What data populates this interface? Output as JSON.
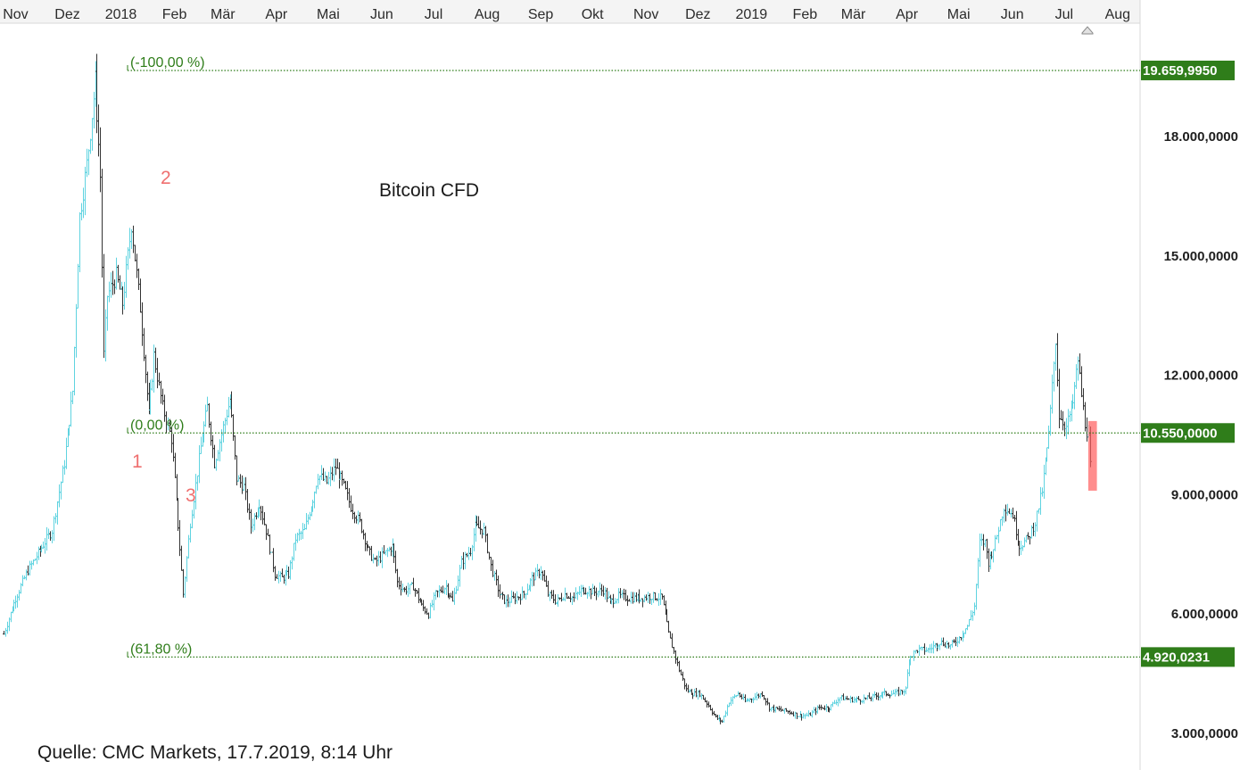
{
  "chart_data": {
    "type": "ohlc",
    "title": "Bitcoin CFD",
    "source": "Quelle: CMC Markets, 17.7.2019, 8:14 Uhr",
    "x_axis_labels": [
      "Nov",
      "Dez",
      "2018",
      "Feb",
      "Mär",
      "Apr",
      "Mai",
      "Jun",
      "Jul",
      "Aug",
      "Sep",
      "Okt",
      "Nov",
      "Dez",
      "2019",
      "Feb",
      "Mär",
      "Apr",
      "Mai",
      "Jun",
      "Jul",
      "Aug"
    ],
    "y_axis_labels": [
      {
        "value": 18000,
        "label": "18.000,0000"
      },
      {
        "value": 15000,
        "label": "15.000,0000"
      },
      {
        "value": 12000,
        "label": "12.000,0000"
      },
      {
        "value": 9000,
        "label": "9.000,0000"
      },
      {
        "value": 6000,
        "label": "6.000,0000"
      },
      {
        "value": 3000,
        "label": "3.000,0000"
      }
    ],
    "fib_levels": [
      {
        "label": "(-100,00 %)",
        "value": 19659.995,
        "tag": "19.659,9950"
      },
      {
        "label": "(0,00 %)",
        "value": 10550,
        "tag": "10.550,0000"
      },
      {
        "label": "(61,80 %)",
        "value": 4920.0231,
        "tag": "4.920,0231"
      }
    ],
    "wave_labels": [
      "1",
      "2",
      "3"
    ],
    "anchors": [
      [
        "2017-10-25",
        5500
      ],
      [
        "2017-11-01",
        6400
      ],
      [
        "2017-11-08",
        7100
      ],
      [
        "2017-11-15",
        7600
      ],
      [
        "2017-11-22",
        8100
      ],
      [
        "2017-11-29",
        9800
      ],
      [
        "2017-12-04",
        11600
      ],
      [
        "2017-12-08",
        16000
      ],
      [
        "2017-12-12",
        17300
      ],
      [
        "2017-12-17",
        19400
      ],
      [
        "2017-12-20",
        17000
      ],
      [
        "2017-12-22",
        12500
      ],
      [
        "2017-12-24",
        14000
      ],
      [
        "2017-12-29",
        14500
      ],
      [
        "2018-01-02",
        13800
      ],
      [
        "2018-01-07",
        15800
      ],
      [
        "2018-01-12",
        13700
      ],
      [
        "2018-01-17",
        11000
      ],
      [
        "2018-01-20",
        12500
      ],
      [
        "2018-01-25",
        11200
      ],
      [
        "2018-01-30",
        10400
      ],
      [
        "2018-02-02",
        8800
      ],
      [
        "2018-02-06",
        6500
      ],
      [
        "2018-02-10",
        8300
      ],
      [
        "2018-02-16",
        10200
      ],
      [
        "2018-02-20",
        11200
      ],
      [
        "2018-02-24",
        9800
      ],
      [
        "2018-03-01",
        10700
      ],
      [
        "2018-03-05",
        11400
      ],
      [
        "2018-03-09",
        9400
      ],
      [
        "2018-03-13",
        9200
      ],
      [
        "2018-03-17",
        8200
      ],
      [
        "2018-03-22",
        8800
      ],
      [
        "2018-03-26",
        8100
      ],
      [
        "2018-03-31",
        7000
      ],
      [
        "2018-04-04",
        6900
      ],
      [
        "2018-04-08",
        7000
      ],
      [
        "2018-04-12",
        7900
      ],
      [
        "2018-04-17",
        8100
      ],
      [
        "2018-04-22",
        8900
      ],
      [
        "2018-04-25",
        9500
      ],
      [
        "2018-04-30",
        9300
      ],
      [
        "2018-05-05",
        9700
      ],
      [
        "2018-05-10",
        9200
      ],
      [
        "2018-05-14",
        8700
      ],
      [
        "2018-05-19",
        8300
      ],
      [
        "2018-05-24",
        7600
      ],
      [
        "2018-05-28",
        7300
      ],
      [
        "2018-06-02",
        7500
      ],
      [
        "2018-06-07",
        7700
      ],
      [
        "2018-06-10",
        6800
      ],
      [
        "2018-06-14",
        6600
      ],
      [
        "2018-06-19",
        6700
      ],
      [
        "2018-06-24",
        6200
      ],
      [
        "2018-06-28",
        6000
      ],
      [
        "2018-07-02",
        6500
      ],
      [
        "2018-07-08",
        6700
      ],
      [
        "2018-07-12",
        6300
      ],
      [
        "2018-07-17",
        7300
      ],
      [
        "2018-07-22",
        7600
      ],
      [
        "2018-07-25",
        8200
      ],
      [
        "2018-07-30",
        8100
      ],
      [
        "2018-08-03",
        7200
      ],
      [
        "2018-08-08",
        6500
      ],
      [
        "2018-08-12",
        6300
      ],
      [
        "2018-08-17",
        6400
      ],
      [
        "2018-08-22",
        6500
      ],
      [
        "2018-08-27",
        6900
      ],
      [
        "2018-09-01",
        7100
      ],
      [
        "2018-09-05",
        6500
      ],
      [
        "2018-09-10",
        6300
      ],
      [
        "2018-09-15",
        6500
      ],
      [
        "2018-09-20",
        6400
      ],
      [
        "2018-09-24",
        6600
      ],
      [
        "2018-09-28",
        6600
      ],
      [
        "2018-10-02",
        6550
      ],
      [
        "2018-10-07",
        6600
      ],
      [
        "2018-10-11",
        6300
      ],
      [
        "2018-10-16",
        6450
      ],
      [
        "2018-10-22",
        6400
      ],
      [
        "2018-10-28",
        6400
      ],
      [
        "2018-11-04",
        6450
      ],
      [
        "2018-11-10",
        6400
      ],
      [
        "2018-11-14",
        5500
      ],
      [
        "2018-11-20",
        4600
      ],
      [
        "2018-11-24",
        4100
      ],
      [
        "2018-11-28",
        4000
      ],
      [
        "2018-12-02",
        4000
      ],
      [
        "2018-12-07",
        3700
      ],
      [
        "2018-12-11",
        3400
      ],
      [
        "2018-12-15",
        3300
      ],
      [
        "2018-12-19",
        3800
      ],
      [
        "2018-12-24",
        4000
      ],
      [
        "2018-12-28",
        3800
      ],
      [
        "2019-01-02",
        3900
      ],
      [
        "2019-01-07",
        4000
      ],
      [
        "2019-01-11",
        3650
      ],
      [
        "2019-01-16",
        3600
      ],
      [
        "2019-01-22",
        3550
      ],
      [
        "2019-01-28",
        3450
      ],
      [
        "2019-02-03",
        3450
      ],
      [
        "2019-02-09",
        3650
      ],
      [
        "2019-02-15",
        3650
      ],
      [
        "2019-02-21",
        3900
      ],
      [
        "2019-02-27",
        3850
      ],
      [
        "2019-03-05",
        3850
      ],
      [
        "2019-03-11",
        3900
      ],
      [
        "2019-03-18",
        4000
      ],
      [
        "2019-03-25",
        4000
      ],
      [
        "2019-03-31",
        4100
      ],
      [
        "2019-04-02",
        4900
      ],
      [
        "2019-04-07",
        5100
      ],
      [
        "2019-04-13",
        5100
      ],
      [
        "2019-04-20",
        5300
      ],
      [
        "2019-04-26",
        5200
      ],
      [
        "2019-05-01",
        5400
      ],
      [
        "2019-05-06",
        5700
      ],
      [
        "2019-05-10",
        6200
      ],
      [
        "2019-05-13",
        7800
      ],
      [
        "2019-05-16",
        7800
      ],
      [
        "2019-05-18",
        7300
      ],
      [
        "2019-05-22",
        7800
      ],
      [
        "2019-05-27",
        8700
      ],
      [
        "2019-06-01",
        8500
      ],
      [
        "2019-06-05",
        7700
      ],
      [
        "2019-06-10",
        7900
      ],
      [
        "2019-06-14",
        8300
      ],
      [
        "2019-06-18",
        9100
      ],
      [
        "2019-06-22",
        10500
      ],
      [
        "2019-06-26",
        12900
      ],
      [
        "2019-06-28",
        11000
      ],
      [
        "2019-07-02",
        10700
      ],
      [
        "2019-07-06",
        11300
      ],
      [
        "2019-07-09",
        12400
      ],
      [
        "2019-07-11",
        11500
      ],
      [
        "2019-07-13",
        10800
      ],
      [
        "2019-07-15",
        10400
      ],
      [
        "2019-07-16",
        9700
      ]
    ],
    "highlight_box": {
      "start": "2019-07-15",
      "end": "2019-07-20",
      "high": 10850,
      "low": 9100
    }
  },
  "colors": {
    "up": "#5fd3e0",
    "down": "#333333",
    "fib": "#2f7d1a",
    "tag_bg": "#2f7d1a",
    "wave": "#ef6f6f",
    "box": "#ff5c5c"
  }
}
